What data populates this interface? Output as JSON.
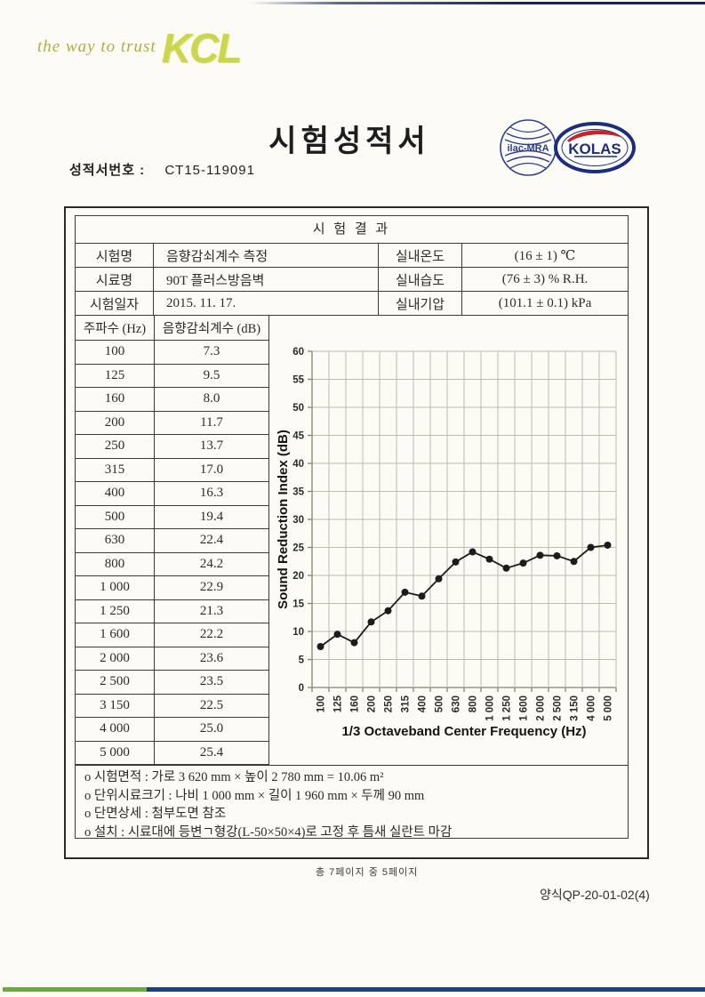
{
  "page": {
    "title": "시험성적서",
    "report_no_label": "성적서번호 :",
    "report_no": "CT15-119091",
    "logo_tagline": "the way to trust",
    "logo_brand": "KCL",
    "footer_page": "총 7페이지 중 5페이지",
    "footer_form": "양식QP-20-01-02(4)"
  },
  "cert_logos": {
    "ilac_text": "ilac-MRA",
    "kolas_text": "KOLAS"
  },
  "result_table": {
    "title": "시 험 결 과",
    "info_rows": [
      {
        "label1": "시험명",
        "value1": "음향감쇠계수 측정",
        "label2": "실내온도",
        "value2": "(16 ± 1) ℃"
      },
      {
        "label1": "시료명",
        "value1": "90T 플러스방음벽",
        "label2": "실내습도",
        "value2": "(76 ± 3) % R.H."
      },
      {
        "label1": "시험일자",
        "value1": "2015. 11. 17.",
        "label2": "실내기압",
        "value2": "(101.1 ± 0.1) kPa"
      }
    ],
    "freq_table": {
      "headers": [
        "주파수 (Hz)",
        "음향감쇠계수 (dB)"
      ],
      "rows": [
        [
          "100",
          "7.3"
        ],
        [
          "125",
          "9.5"
        ],
        [
          "160",
          "8.0"
        ],
        [
          "200",
          "11.7"
        ],
        [
          "250",
          "13.7"
        ],
        [
          "315",
          "17.0"
        ],
        [
          "400",
          "16.3"
        ],
        [
          "500",
          "19.4"
        ],
        [
          "630",
          "22.4"
        ],
        [
          "800",
          "24.2"
        ],
        [
          "1 000",
          "22.9"
        ],
        [
          "1 250",
          "21.3"
        ],
        [
          "1 600",
          "22.2"
        ],
        [
          "2 000",
          "23.6"
        ],
        [
          "2 500",
          "23.5"
        ],
        [
          "3 150",
          "22.5"
        ],
        [
          "4 000",
          "25.0"
        ],
        [
          "5 000",
          "25.4"
        ]
      ]
    },
    "notes": [
      "o 시험면적 : 가로 3 620 mm × 높이 2 780 mm = 10.06 m²",
      "o 단위시료크기 : 나비 1 000 mm × 길이 1 960 mm × 두께 90 mm",
      "o 단면상세 : 첨부도면 참조",
      "o 설치 : 시료대에 등변ㄱ형강(L-50×50×4)로 고정 후 틈새 실란트 마감"
    ]
  },
  "chart_data": {
    "type": "line",
    "categories": [
      "100",
      "125",
      "160",
      "200",
      "250",
      "315",
      "400",
      "500",
      "630",
      "800",
      "1 000",
      "1 250",
      "1 600",
      "2 000",
      "2 500",
      "3 150",
      "4 000",
      "5 000"
    ],
    "values": [
      7.3,
      9.5,
      8.0,
      11.7,
      13.7,
      17.0,
      16.3,
      19.4,
      22.4,
      24.2,
      22.9,
      21.3,
      22.2,
      23.6,
      23.5,
      22.5,
      25.0,
      25.4
    ],
    "title": "",
    "xlabel": "1/3 Octaveband Center Frequency (Hz)",
    "ylabel": "Sound Reduction Index (dB)",
    "ylim": [
      0,
      60
    ],
    "ytick_step": 5,
    "grid": true,
    "legend": "none",
    "marker": "filled-circle",
    "line_color": "#1c1c1c",
    "grid_color": "#c2baac"
  },
  "colors": {
    "brand_green": "#ccd64c",
    "tagline_olive": "#b3ad3f",
    "bar_green": "#6caa40",
    "bar_navy": "#1e3f7f",
    "logo_navy": "#1b2d7e",
    "logo_red": "#cc2229"
  }
}
